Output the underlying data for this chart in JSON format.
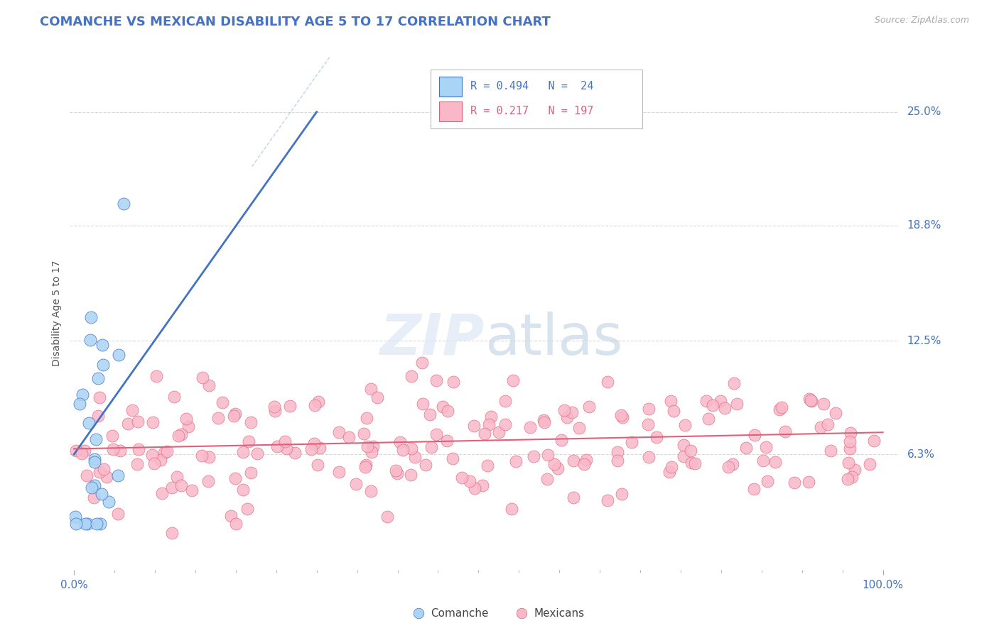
{
  "title": "COMANCHE VS MEXICAN DISABILITY AGE 5 TO 17 CORRELATION CHART",
  "source_text": "Source: ZipAtlas.com",
  "ylabel": "Disability Age 5 to 17",
  "xmin": 0.0,
  "xmax": 1.0,
  "ymin": 0.0,
  "ymax": 0.28,
  "ytick_vals": [
    0.063,
    0.125,
    0.188,
    0.25
  ],
  "ytick_labels": [
    "6.3%",
    "12.5%",
    "18.8%",
    "25.0%"
  ],
  "background_color": "#ffffff",
  "comanche_color": "#aad4f5",
  "comanche_edge_color": "#4472c4",
  "mexican_color": "#f9b8c8",
  "mexican_edge_color": "#e0607a",
  "comanche_line_color": "#4472c4",
  "mexican_line_color": "#e0607a",
  "diagonal_line_color": "#9ab8d8",
  "gridline_color": "#d8d8d8",
  "title_color": "#4472c4",
  "source_color": "#aaaaaa",
  "axis_label_color": "#555555",
  "axis_tick_color": "#4472c4",
  "watermark_color": "#e8eef8",
  "comanche_R": 0.494,
  "comanche_N": 24,
  "mexican_R": 0.217,
  "mexican_N": 197,
  "legend_R_color": "#4472c4",
  "legend_R2_color": "#e0607a"
}
